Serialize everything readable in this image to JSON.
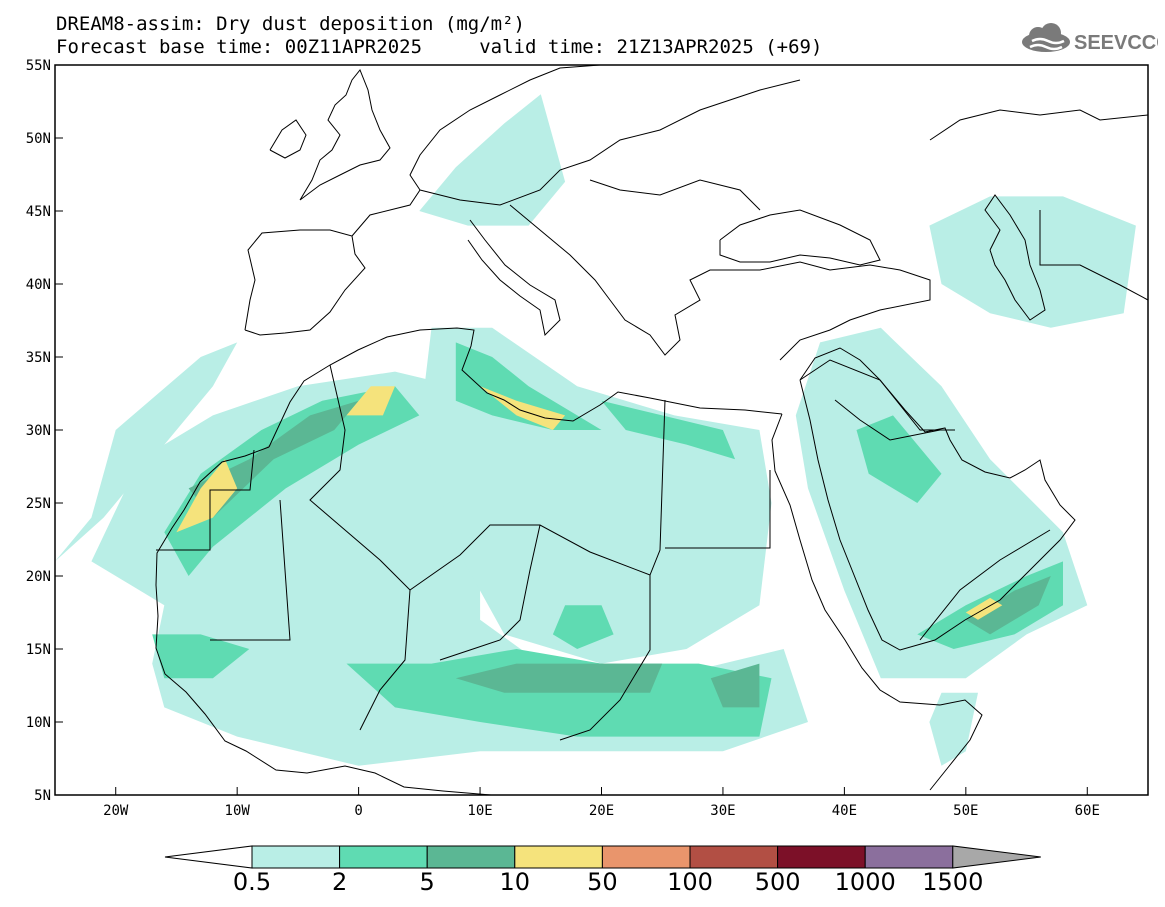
{
  "title": {
    "line1": "DREAM8-assim: Dry dust deposition (mg/m²)",
    "line2": "Forecast base time: 00Z11APR2025     valid time: 21Z13APR2025 (+69)"
  },
  "logo": {
    "text": "SEEVCCC",
    "icon": "cloud-icon",
    "color": "#7a7a7a"
  },
  "map": {
    "projection": "lat-lon",
    "lon_range": [
      -25,
      65
    ],
    "lat_range": [
      5,
      55
    ],
    "lon_ticks": [
      {
        "value": -20,
        "label": "20W"
      },
      {
        "value": -10,
        "label": "10W"
      },
      {
        "value": 0,
        "label": "0"
      },
      {
        "value": 10,
        "label": "10E"
      },
      {
        "value": 20,
        "label": "20E"
      },
      {
        "value": 30,
        "label": "30E"
      },
      {
        "value": 40,
        "label": "40E"
      },
      {
        "value": 50,
        "label": "50E"
      },
      {
        "value": 60,
        "label": "60E"
      }
    ],
    "lat_ticks": [
      {
        "value": 55,
        "label": "55N"
      },
      {
        "value": 50,
        "label": "50N"
      },
      {
        "value": 45,
        "label": "45N"
      },
      {
        "value": 40,
        "label": "40N"
      },
      {
        "value": 35,
        "label": "35N"
      },
      {
        "value": 30,
        "label": "30N"
      },
      {
        "value": 25,
        "label": "25N"
      },
      {
        "value": 20,
        "label": "20N"
      },
      {
        "value": 15,
        "label": "15N"
      },
      {
        "value": 10,
        "label": "10N"
      },
      {
        "value": 5,
        "label": "5N"
      }
    ],
    "deposition_zones": [
      {
        "level": 1,
        "name": "west-africa-plume",
        "points": [
          [
            -22,
            21
          ],
          [
            -18,
            28
          ],
          [
            -12,
            31
          ],
          [
            -5,
            33
          ],
          [
            3,
            34
          ],
          [
            8,
            33
          ],
          [
            10,
            25
          ],
          [
            10,
            17
          ],
          [
            15,
            14
          ],
          [
            25,
            13
          ],
          [
            35,
            15
          ],
          [
            37,
            10
          ],
          [
            30,
            8
          ],
          [
            20,
            8
          ],
          [
            10,
            8
          ],
          [
            0,
            7
          ],
          [
            -10,
            9
          ],
          [
            -16,
            11
          ],
          [
            -17,
            14
          ],
          [
            -16,
            18
          ]
        ]
      },
      {
        "level": 1,
        "name": "atlantic-tongue",
        "points": [
          [
            -25,
            21
          ],
          [
            -22,
            24
          ],
          [
            -20,
            30
          ],
          [
            -13,
            35
          ],
          [
            -10,
            36
          ],
          [
            -12,
            33
          ],
          [
            -17,
            28
          ],
          [
            -21,
            24
          ]
        ]
      },
      {
        "level": 1,
        "name": "north-africa-sahara",
        "points": [
          [
            6,
            37
          ],
          [
            11,
            37
          ],
          [
            18,
            33
          ],
          [
            26,
            31
          ],
          [
            33,
            30
          ],
          [
            34,
            25
          ],
          [
            33,
            18
          ],
          [
            27,
            15
          ],
          [
            20,
            14
          ],
          [
            12,
            16
          ],
          [
            8,
            22
          ],
          [
            5,
            30
          ]
        ]
      },
      {
        "level": 1,
        "name": "arabia",
        "points": [
          [
            38,
            36
          ],
          [
            43,
            37
          ],
          [
            48,
            33
          ],
          [
            52,
            28
          ],
          [
            58,
            23
          ],
          [
            60,
            18
          ],
          [
            55,
            16
          ],
          [
            50,
            13
          ],
          [
            43,
            13
          ],
          [
            40,
            19
          ],
          [
            37,
            26
          ],
          [
            36,
            31
          ]
        ]
      },
      {
        "level": 1,
        "name": "central-europe",
        "points": [
          [
            5,
            45
          ],
          [
            8,
            48
          ],
          [
            12,
            51
          ],
          [
            15,
            53
          ],
          [
            17,
            47
          ],
          [
            14,
            44
          ],
          [
            9,
            44
          ]
        ]
      },
      {
        "level": 1,
        "name": "caspian",
        "points": [
          [
            47,
            44
          ],
          [
            52,
            46
          ],
          [
            58,
            46
          ],
          [
            64,
            44
          ],
          [
            63,
            38
          ],
          [
            57,
            37
          ],
          [
            52,
            38
          ],
          [
            48,
            40
          ]
        ]
      },
      {
        "level": 1,
        "name": "horn-of-africa",
        "points": [
          [
            48,
            12
          ],
          [
            51,
            12
          ],
          [
            50,
            8
          ],
          [
            48,
            7
          ],
          [
            47,
            10
          ]
        ]
      },
      {
        "level": 2,
        "name": "west-sahara-coast",
        "points": [
          [
            -16,
            23
          ],
          [
            -13,
            27
          ],
          [
            -8,
            30
          ],
          [
            -3,
            32
          ],
          [
            3,
            33
          ],
          [
            5,
            31
          ],
          [
            0,
            29
          ],
          [
            -6,
            26
          ],
          [
            -12,
            22
          ],
          [
            -14,
            20
          ]
        ]
      },
      {
        "level": 2,
        "name": "sahel-band",
        "points": [
          [
            -1,
            14
          ],
          [
            6,
            14
          ],
          [
            13,
            15
          ],
          [
            20,
            14
          ],
          [
            28,
            14
          ],
          [
            34,
            13
          ],
          [
            33,
            9
          ],
          [
            26,
            9
          ],
          [
            18,
            9
          ],
          [
            10,
            10
          ],
          [
            3,
            11
          ]
        ]
      },
      {
        "level": 2,
        "name": "west-africa-coast",
        "points": [
          [
            -17,
            16
          ],
          [
            -13,
            16
          ],
          [
            -9,
            15
          ],
          [
            -12,
            13
          ],
          [
            -16,
            13
          ]
        ]
      },
      {
        "level": 2,
        "name": "tunisia-libya",
        "points": [
          [
            8,
            36
          ],
          [
            11,
            35
          ],
          [
            14,
            33
          ],
          [
            18,
            31
          ],
          [
            20,
            30
          ],
          [
            16,
            30
          ],
          [
            11,
            31
          ],
          [
            8,
            32
          ]
        ]
      },
      {
        "level": 2,
        "name": "chad-north",
        "points": [
          [
            17,
            18
          ],
          [
            20,
            18
          ],
          [
            21,
            16
          ],
          [
            18,
            15
          ],
          [
            16,
            16
          ]
        ]
      },
      {
        "level": 2,
        "name": "arabia-south",
        "points": [
          [
            46,
            16
          ],
          [
            50,
            18
          ],
          [
            55,
            20
          ],
          [
            58,
            21
          ],
          [
            58,
            18
          ],
          [
            54,
            16
          ],
          [
            49,
            15
          ]
        ]
      },
      {
        "level": 2,
        "name": "iraq",
        "points": [
          [
            41,
            30
          ],
          [
            44,
            31
          ],
          [
            48,
            27
          ],
          [
            46,
            25
          ],
          [
            42,
            27
          ]
        ]
      },
      {
        "level": 2,
        "name": "egypt-coast",
        "points": [
          [
            20,
            32
          ],
          [
            25,
            31
          ],
          [
            30,
            30
          ],
          [
            31,
            28
          ],
          [
            27,
            29
          ],
          [
            22,
            30
          ]
        ]
      },
      {
        "level": 3,
        "name": "morocco-core",
        "points": [
          [
            -14,
            26
          ],
          [
            -9,
            28
          ],
          [
            -4,
            31
          ],
          [
            0,
            32
          ],
          [
            -2,
            30
          ],
          [
            -7,
            28
          ],
          [
            -12,
            24
          ]
        ]
      },
      {
        "level": 3,
        "name": "nigeria-chad",
        "points": [
          [
            8,
            13
          ],
          [
            13,
            14
          ],
          [
            20,
            14
          ],
          [
            25,
            14
          ],
          [
            24,
            12
          ],
          [
            18,
            12
          ],
          [
            12,
            12
          ]
        ]
      },
      {
        "level": 3,
        "name": "sudan",
        "points": [
          [
            29,
            13
          ],
          [
            33,
            14
          ],
          [
            33,
            11
          ],
          [
            30,
            11
          ]
        ]
      },
      {
        "level": 3,
        "name": "oman",
        "points": [
          [
            50,
            17
          ],
          [
            54,
            19
          ],
          [
            57,
            20
          ],
          [
            56,
            18
          ],
          [
            52,
            16
          ]
        ]
      },
      {
        "level": 4,
        "name": "western-sahara-max",
        "points": [
          [
            -15,
            23
          ],
          [
            -13,
            26
          ],
          [
            -11,
            28
          ],
          [
            -10,
            26
          ],
          [
            -12,
            24
          ]
        ]
      },
      {
        "level": 4,
        "name": "algeria-max",
        "points": [
          [
            -1,
            31
          ],
          [
            1,
            33
          ],
          [
            3,
            33
          ],
          [
            2,
            31
          ]
        ]
      },
      {
        "level": 4,
        "name": "libya-max",
        "points": [
          [
            10,
            33
          ],
          [
            13,
            32
          ],
          [
            17,
            31
          ],
          [
            16,
            30
          ],
          [
            13,
            31
          ]
        ]
      },
      {
        "level": 4,
        "name": "yemen-max",
        "points": [
          [
            50,
            17.5
          ],
          [
            52,
            18.5
          ],
          [
            53,
            18
          ],
          [
            51,
            17
          ]
        ]
      }
    ]
  },
  "colorbar": {
    "colors": [
      "#ffffff",
      "#b9eee6",
      "#5fdbb2",
      "#5bb794",
      "#f5e37c",
      "#e9956c",
      "#b24f44",
      "#7c1028",
      "#8b6f9d",
      "#a8a8a8"
    ],
    "labels": [
      "0.5",
      "2",
      "5",
      "10",
      "50",
      "100",
      "500",
      "1000",
      "1500"
    ]
  }
}
